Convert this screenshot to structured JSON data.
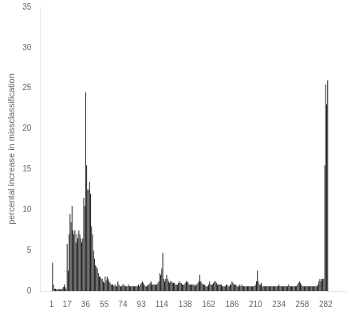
{
  "chart_data": {
    "type": "bar",
    "ylabel": "percental increase in missclassification",
    "color": "#1a1a1a",
    "grid": false,
    "xlim": [
      0.5,
      291
    ],
    "ylim": [
      0,
      35
    ],
    "xticks": [
      1,
      17,
      36,
      55,
      74,
      93,
      114,
      138,
      162,
      186,
      210,
      234,
      258,
      282
    ],
    "yticks": [
      0,
      5,
      10,
      15,
      20,
      25,
      30,
      35
    ],
    "x": [
      1,
      2,
      3,
      4,
      5,
      6,
      7,
      8,
      9,
      10,
      11,
      12,
      13,
      14,
      15,
      16,
      17,
      18,
      19,
      20,
      21,
      22,
      23,
      24,
      25,
      26,
      27,
      28,
      29,
      30,
      31,
      32,
      33,
      34,
      35,
      36,
      37,
      38,
      39,
      40,
      41,
      42,
      43,
      44,
      45,
      46,
      47,
      48,
      49,
      50,
      51,
      52,
      53,
      54,
      55,
      56,
      57,
      58,
      59,
      60,
      61,
      62,
      63,
      64,
      65,
      66,
      67,
      68,
      69,
      70,
      71,
      72,
      73,
      74,
      75,
      76,
      77,
      78,
      79,
      80,
      81,
      82,
      83,
      84,
      85,
      86,
      87,
      88,
      89,
      90,
      91,
      92,
      93,
      94,
      95,
      96,
      97,
      98,
      99,
      100,
      101,
      102,
      103,
      104,
      105,
      106,
      107,
      108,
      109,
      110,
      111,
      112,
      113,
      114,
      115,
      116,
      117,
      118,
      119,
      120,
      121,
      122,
      123,
      124,
      125,
      126,
      127,
      128,
      129,
      130,
      131,
      132,
      133,
      134,
      135,
      136,
      137,
      138,
      139,
      140,
      141,
      142,
      143,
      144,
      145,
      146,
      147,
      148,
      149,
      150,
      151,
      152,
      153,
      154,
      155,
      156,
      157,
      158,
      159,
      160,
      161,
      162,
      163,
      164,
      165,
      166,
      167,
      168,
      169,
      170,
      171,
      172,
      173,
      174,
      175,
      176,
      177,
      178,
      179,
      180,
      181,
      182,
      183,
      184,
      185,
      186,
      187,
      188,
      189,
      190,
      191,
      192,
      193,
      194,
      195,
      196,
      197,
      198,
      199,
      200,
      201,
      202,
      203,
      204,
      205,
      206,
      207,
      208,
      209,
      210,
      211,
      212,
      213,
      214,
      215,
      216,
      217,
      218,
      219,
      220,
      221,
      222,
      223,
      224,
      225,
      226,
      227,
      228,
      229,
      230,
      231,
      232,
      233,
      234,
      235,
      236,
      237,
      238,
      239,
      240,
      241,
      242,
      243,
      244,
      245,
      246,
      247,
      248,
      249,
      250,
      251,
      252,
      253,
      254,
      255,
      256,
      257,
      258,
      259,
      260,
      261,
      262,
      263,
      264,
      265,
      266,
      267,
      268,
      269,
      270,
      271,
      272,
      273,
      274,
      275,
      276,
      277,
      278,
      279,
      280,
      281,
      282,
      283,
      284,
      285,
      286,
      287,
      288,
      289,
      290
    ],
    "values": [
      0.0,
      3.5,
      0.8,
      0.3,
      0.3,
      0.2,
      0.2,
      0.3,
      0.2,
      0.2,
      0.3,
      0.3,
      0.5,
      0.8,
      0.5,
      0.3,
      5.8,
      2.5,
      7.0,
      9.5,
      8.5,
      10.5,
      7.5,
      7.0,
      7.5,
      6.0,
      7.0,
      6.5,
      7.5,
      7.0,
      6.5,
      6.0,
      6.5,
      11.5,
      10.5,
      24.5,
      15.5,
      12.5,
      12.5,
      13.5,
      12.0,
      8.0,
      7.0,
      5.0,
      4.0,
      3.2,
      3.0,
      2.8,
      2.2,
      1.8,
      1.8,
      1.5,
      1.5,
      1.2,
      1.0,
      1.8,
      1.3,
      1.8,
      1.5,
      1.2,
      1.0,
      0.8,
      0.8,
      0.8,
      0.6,
      0.8,
      0.6,
      0.6,
      1.2,
      0.8,
      0.6,
      0.6,
      0.6,
      0.8,
      0.8,
      0.6,
      0.6,
      0.6,
      0.6,
      0.8,
      0.6,
      0.6,
      0.6,
      0.6,
      0.6,
      0.6,
      0.6,
      0.6,
      0.6,
      0.8,
      0.6,
      0.8,
      1.0,
      1.2,
      1.0,
      0.8,
      0.6,
      0.6,
      0.6,
      0.8,
      0.8,
      1.0,
      1.2,
      0.8,
      0.8,
      0.8,
      0.8,
      0.8,
      0.8,
      1.0,
      1.2,
      2.2,
      2.0,
      2.8,
      4.7,
      1.5,
      1.2,
      1.5,
      2.0,
      1.5,
      1.2,
      1.0,
      1.2,
      1.2,
      1.0,
      1.0,
      1.0,
      0.8,
      0.8,
      0.8,
      1.0,
      1.2,
      1.0,
      1.0,
      0.8,
      0.8,
      0.8,
      1.0,
      1.2,
      1.2,
      1.0,
      0.8,
      0.8,
      0.8,
      0.8,
      0.8,
      0.8,
      0.6,
      0.8,
      0.8,
      1.0,
      1.2,
      2.0,
      1.2,
      1.0,
      0.8,
      0.8,
      0.8,
      0.6,
      0.6,
      0.6,
      0.8,
      1.2,
      0.8,
      0.8,
      0.8,
      1.0,
      1.2,
      1.2,
      1.0,
      0.8,
      0.8,
      0.8,
      0.8,
      0.8,
      0.6,
      0.6,
      0.6,
      0.6,
      0.8,
      0.8,
      0.6,
      0.6,
      0.8,
      0.8,
      1.2,
      1.0,
      0.8,
      0.8,
      0.8,
      0.6,
      0.6,
      0.6,
      0.8,
      0.6,
      0.8,
      0.6,
      0.6,
      0.6,
      0.6,
      0.6,
      0.6,
      0.6,
      0.6,
      0.6,
      0.6,
      0.6,
      0.6,
      0.6,
      0.8,
      1.2,
      2.5,
      1.2,
      0.8,
      0.8,
      1.0,
      0.6,
      0.6,
      0.6,
      0.6,
      0.6,
      0.6,
      0.6,
      0.6,
      0.6,
      0.6,
      0.6,
      0.6,
      0.6,
      0.6,
      0.6,
      0.6,
      0.6,
      0.8,
      0.6,
      0.6,
      0.6,
      0.6,
      0.6,
      0.6,
      0.6,
      0.6,
      0.6,
      0.8,
      0.6,
      0.6,
      0.6,
      0.6,
      0.6,
      0.6,
      0.6,
      0.6,
      0.8,
      1.0,
      1.2,
      1.0,
      0.8,
      0.6,
      0.6,
      0.6,
      0.6,
      0.6,
      0.6,
      0.6,
      0.6,
      0.6,
      0.6,
      0.6,
      0.6,
      0.6,
      0.6,
      0.6,
      0.6,
      0.8,
      1.2,
      1.5,
      1.2,
      1.5,
      1.5,
      1.5,
      15.5,
      25.5,
      23.0,
      26.0,
      0.0,
      0.0,
      0.0,
      0.0,
      0.0,
      0.0
    ]
  }
}
